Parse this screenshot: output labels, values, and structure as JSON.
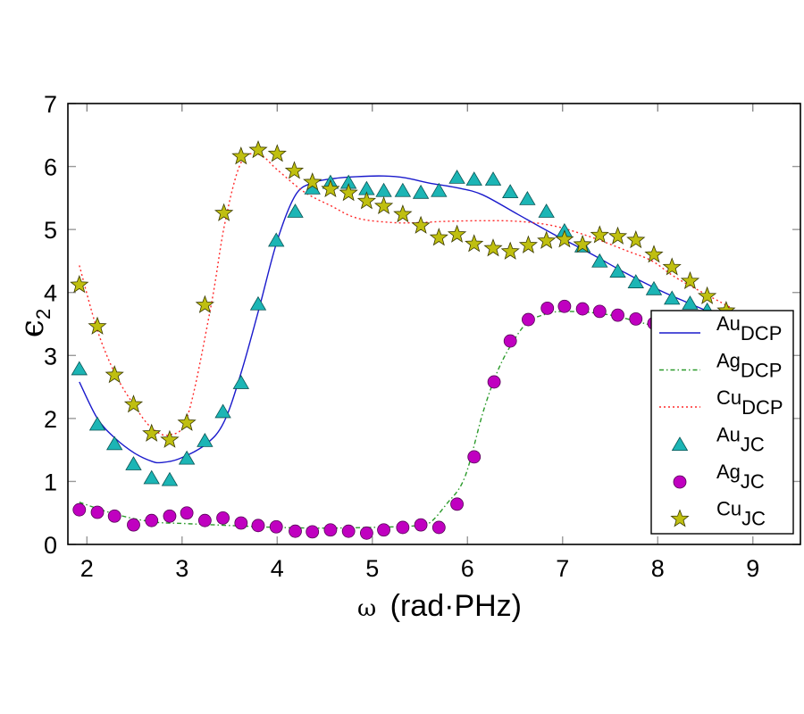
{
  "chart_data": {
    "type": "line",
    "title": "",
    "xlabel_symbol": "ω",
    "xlabel_unit": "(rad·PHz)",
    "xlabel": "ω (rad·PHz)",
    "ylabel": "ϵ",
    "ylabel_sub": "2",
    "xlim": [
      1.8,
      9.5
    ],
    "ylim": [
      0,
      7
    ],
    "xticks": [
      2,
      3,
      4,
      5,
      6,
      7,
      8,
      9
    ],
    "yticks": [
      0,
      1,
      2,
      3,
      4,
      5,
      6,
      7
    ],
    "grid": false,
    "legend_position": "bottom-right",
    "series": [
      {
        "name": "AuDCP",
        "label_main": "Au",
        "label_sub": "DCP",
        "kind": "line",
        "style": "solid",
        "color": "#1a1acc",
        "x": [
          1.92,
          2.11,
          2.3,
          2.5,
          2.68,
          2.78,
          2.97,
          3.25,
          3.44,
          3.62,
          3.81,
          4.0,
          4.19,
          4.37,
          4.6,
          4.84,
          5.12,
          5.35,
          5.59,
          5.9,
          6.16,
          6.53,
          6.9,
          7.28,
          7.66,
          8.0,
          8.22,
          8.59
        ],
        "y": [
          2.58,
          2.0,
          1.68,
          1.45,
          1.32,
          1.3,
          1.36,
          1.59,
          1.94,
          2.72,
          3.75,
          4.82,
          5.54,
          5.74,
          5.81,
          5.84,
          5.85,
          5.82,
          5.74,
          5.66,
          5.55,
          5.24,
          4.93,
          4.63,
          4.31,
          4.05,
          3.9,
          3.66
        ]
      },
      {
        "name": "AgDCP",
        "label_main": "Ag",
        "label_sub": "DCP",
        "kind": "line",
        "style": "dashdot",
        "color": "#2a9a2a",
        "x": [
          1.92,
          2.3,
          2.68,
          3.05,
          3.5,
          4.0,
          4.5,
          5.0,
          5.4,
          5.59,
          5.78,
          5.97,
          6.16,
          6.3,
          6.44,
          6.62,
          6.81,
          7.02,
          7.47,
          7.98
        ],
        "y": [
          0.67,
          0.48,
          0.36,
          0.33,
          0.3,
          0.27,
          0.26,
          0.27,
          0.29,
          0.33,
          0.64,
          1.06,
          2.08,
          2.69,
          3.12,
          3.51,
          3.65,
          3.7,
          3.65,
          3.46
        ]
      },
      {
        "name": "CuDCP",
        "label_main": "Cu",
        "label_sub": "DCP",
        "kind": "line",
        "style": "dotted",
        "color": "#ff2a2a",
        "x": [
          1.92,
          2.11,
          2.3,
          2.5,
          2.68,
          2.87,
          3.06,
          3.3,
          3.45,
          3.62,
          3.81,
          4.0,
          4.28,
          4.56,
          4.84,
          5.22,
          5.5,
          5.78,
          6.16,
          6.53,
          6.9,
          7.28,
          7.66,
          7.94,
          8.22,
          8.78
        ],
        "y": [
          4.43,
          3.4,
          2.7,
          2.2,
          1.85,
          1.74,
          2.05,
          3.75,
          5.1,
          6.06,
          6.19,
          5.95,
          5.6,
          5.38,
          5.18,
          5.11,
          5.11,
          5.13,
          5.14,
          5.13,
          5.06,
          4.89,
          4.67,
          4.5,
          4.21,
          3.75
        ]
      },
      {
        "name": "AuJC",
        "label_main": "Au",
        "label_sub": "JC",
        "kind": "scatter",
        "marker": "triangle",
        "color": "#1cb5b5",
        "x": [
          1.92,
          2.11,
          2.29,
          2.49,
          2.68,
          2.87,
          3.05,
          3.24,
          3.43,
          3.62,
          3.8,
          3.99,
          4.19,
          4.37,
          4.56,
          4.75,
          4.94,
          5.12,
          5.32,
          5.51,
          5.7,
          5.89,
          6.07,
          6.27,
          6.45,
          6.63,
          6.83,
          7.02,
          7.21,
          7.39,
          7.58,
          7.77,
          7.96,
          8.15,
          8.34,
          8.52
        ],
        "y": [
          2.78,
          1.9,
          1.59,
          1.27,
          1.05,
          1.02,
          1.36,
          1.64,
          2.1,
          2.56,
          3.81,
          4.82,
          5.28,
          5.65,
          5.74,
          5.74,
          5.64,
          5.61,
          5.61,
          5.58,
          5.61,
          5.82,
          5.79,
          5.79,
          5.59,
          5.48,
          5.28,
          4.97,
          4.73,
          4.49,
          4.33,
          4.16,
          4.05,
          3.9,
          3.82,
          3.71
        ]
      },
      {
        "name": "AgJC",
        "label_main": "Ag",
        "label_sub": "JC",
        "kind": "scatter",
        "marker": "circle",
        "color": "#c000c0",
        "x": [
          1.92,
          2.11,
          2.29,
          2.49,
          2.68,
          2.87,
          3.05,
          3.24,
          3.43,
          3.62,
          3.8,
          3.99,
          4.19,
          4.37,
          4.56,
          4.75,
          4.94,
          5.12,
          5.32,
          5.51,
          5.7,
          5.89,
          6.07,
          6.28,
          6.45,
          6.64,
          6.84,
          7.02,
          7.21,
          7.39,
          7.58,
          7.77,
          7.96
        ],
        "y": [
          0.55,
          0.51,
          0.45,
          0.31,
          0.38,
          0.45,
          0.5,
          0.38,
          0.42,
          0.34,
          0.3,
          0.28,
          0.21,
          0.2,
          0.23,
          0.21,
          0.18,
          0.23,
          0.27,
          0.31,
          0.27,
          0.64,
          1.39,
          2.58,
          3.23,
          3.57,
          3.75,
          3.78,
          3.74,
          3.7,
          3.64,
          3.58,
          3.51
        ]
      },
      {
        "name": "CuJC",
        "label_main": "Cu",
        "label_sub": "JC",
        "kind": "scatter",
        "marker": "star",
        "color": "#bfbf10",
        "x": [
          1.92,
          2.11,
          2.29,
          2.49,
          2.68,
          2.87,
          3.05,
          3.24,
          3.44,
          3.62,
          3.8,
          4.0,
          4.18,
          4.37,
          4.56,
          4.75,
          4.94,
          5.12,
          5.32,
          5.51,
          5.7,
          5.89,
          6.07,
          6.27,
          6.45,
          6.64,
          6.83,
          7.02,
          7.21,
          7.39,
          7.58,
          7.77,
          7.96,
          8.15,
          8.34,
          8.52,
          8.72
        ],
        "y": [
          4.12,
          3.46,
          2.69,
          2.22,
          1.76,
          1.66,
          1.93,
          3.8,
          5.26,
          6.16,
          6.26,
          6.2,
          5.93,
          5.75,
          5.64,
          5.58,
          5.45,
          5.37,
          5.24,
          5.06,
          4.87,
          4.92,
          4.77,
          4.7,
          4.65,
          4.75,
          4.82,
          4.84,
          4.76,
          4.91,
          4.89,
          4.83,
          4.6,
          4.4,
          4.18,
          3.94,
          3.71
        ]
      }
    ]
  }
}
